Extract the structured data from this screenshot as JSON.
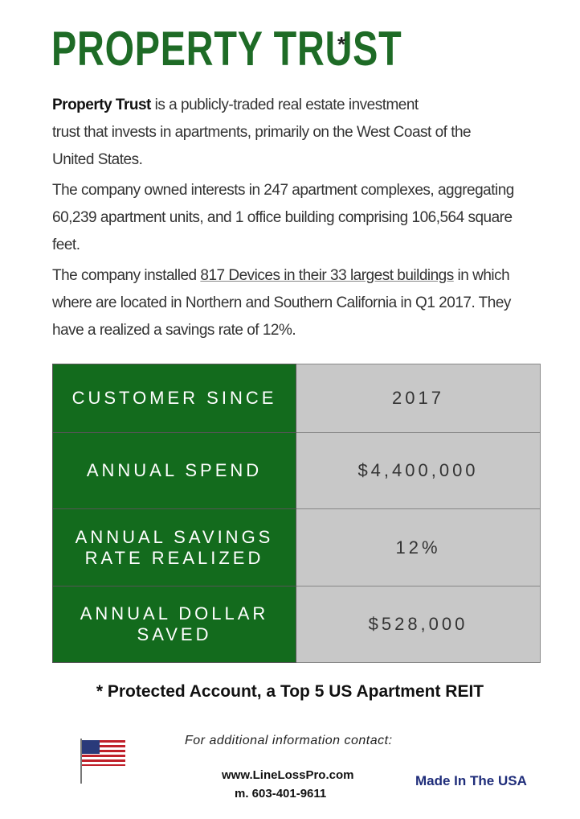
{
  "header": {
    "title": "PROPERTY TRUST",
    "marker": "*"
  },
  "paragraphs": [
    {
      "lines": [
        {
          "bold": "Property Trust",
          "rest": " is a publicly-traded real estate investment"
        },
        "trust that invests in apartments, primarily on the West Coast of the",
        "United States."
      ]
    },
    {
      "lines": [
        "The company owned interests in 247 apartment complexes, aggregating",
        "60,239 apartment units, and 1 office building comprising 106,564 square",
        "feet."
      ]
    },
    {
      "lines": [
        {
          "before": "The company installed ",
          "underlined": "817 Devices in their 33 largest buildings",
          "after": " in which"
        },
        "where are located in Northern and Southern California in Q1 2017. They",
        "have a realized a savings rate of 12%."
      ]
    }
  ],
  "table": {
    "rows": [
      [
        [
          "CUSTOMER SINCE"
        ],
        "2017"
      ],
      [
        [
          "ANNUAL SPEND"
        ],
        "$4,400,000"
      ],
      [
        [
          "ANNUAL SAVINGS",
          "RATE REALIZED"
        ],
        "12%"
      ],
      [
        [
          "ANNUAL DOLLAR SAVED"
        ],
        "$528,000"
      ]
    ]
  },
  "footer": {
    "note": "* Protected Account, a Top 5 US Apartment REIT",
    "contact": "For additional information contact:",
    "website": "www.LineLossPro.com",
    "phone": "m. 603-401-9611",
    "made_in": "Made In The USA"
  }
}
